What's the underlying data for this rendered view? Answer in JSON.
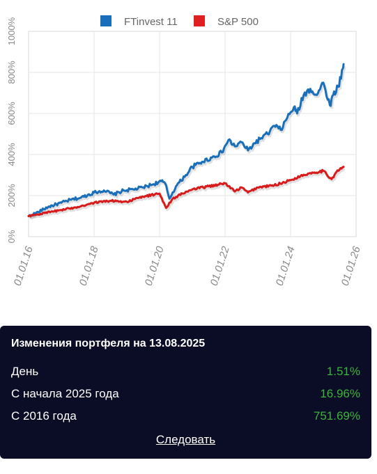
{
  "chart_data": {
    "type": "line",
    "title": "",
    "xlabel": "",
    "ylabel": "",
    "y_scale": "linear",
    "y_ticks": [
      "0%",
      "200%",
      "400%",
      "600%",
      "800%",
      "1000%"
    ],
    "y_tick_values": [
      0,
      200,
      400,
      600,
      800,
      1000
    ],
    "ylim": [
      0,
      1000
    ],
    "x_ticks": [
      "01.01.16",
      "01.01.18",
      "01.01.20",
      "01.01.22",
      "01.01.24",
      "01.01.26"
    ],
    "x_tick_values": [
      2016.0,
      2018.0,
      2020.0,
      2022.0,
      2024.0,
      2026.0
    ],
    "xlim": [
      2016.0,
      2026.0
    ],
    "grid": true,
    "legend_position": "top-center",
    "series": [
      {
        "name": "FTinvest 11",
        "color": "#1a6fba",
        "x": [
          2016.0,
          2016.3,
          2016.6,
          2017.0,
          2017.3,
          2017.6,
          2018.0,
          2018.3,
          2018.6,
          2018.9,
          2019.2,
          2019.5,
          2019.8,
          2020.05,
          2020.17,
          2020.3,
          2020.5,
          2020.8,
          2021.0,
          2021.3,
          2021.6,
          2021.9,
          2022.1,
          2022.3,
          2022.5,
          2022.7,
          2022.9,
          2023.1,
          2023.3,
          2023.5,
          2023.7,
          2023.9,
          2024.1,
          2024.2,
          2024.4,
          2024.6,
          2024.8,
          2025.0,
          2025.2,
          2025.3,
          2025.45,
          2025.6,
          2025.62
        ],
        "values": [
          100,
          120,
          145,
          165,
          180,
          190,
          215,
          225,
          205,
          225,
          230,
          240,
          255,
          270,
          260,
          185,
          245,
          300,
          340,
          365,
          385,
          410,
          470,
          440,
          460,
          420,
          455,
          480,
          500,
          540,
          520,
          580,
          630,
          600,
          690,
          720,
          690,
          750,
          640,
          690,
          730,
          820,
          840
        ]
      },
      {
        "name": "S&P 500",
        "color": "#d81b1b",
        "x": [
          2016.0,
          2016.5,
          2017.0,
          2017.5,
          2018.0,
          2018.5,
          2019.0,
          2019.5,
          2020.0,
          2020.2,
          2020.4,
          2020.7,
          2021.0,
          2021.5,
          2022.0,
          2022.3,
          2022.5,
          2022.7,
          2023.0,
          2023.5,
          2024.0,
          2024.3,
          2024.6,
          2025.0,
          2025.25,
          2025.4,
          2025.62
        ],
        "values": [
          100,
          115,
          130,
          145,
          165,
          175,
          170,
          195,
          210,
          140,
          185,
          210,
          230,
          245,
          260,
          220,
          240,
          215,
          240,
          250,
          275,
          295,
          310,
          320,
          280,
          315,
          340
        ]
      }
    ]
  },
  "panel": {
    "title": "Изменения портфеля на 13.08.2025",
    "rows": [
      {
        "label": "День",
        "value": "1.51%"
      },
      {
        "label": "С начала 2025 года",
        "value": "16.96%"
      },
      {
        "label": "С 2016 года",
        "value": "751.69%"
      }
    ],
    "follow_label": "Следовать",
    "value_color": "#3bb53b"
  }
}
